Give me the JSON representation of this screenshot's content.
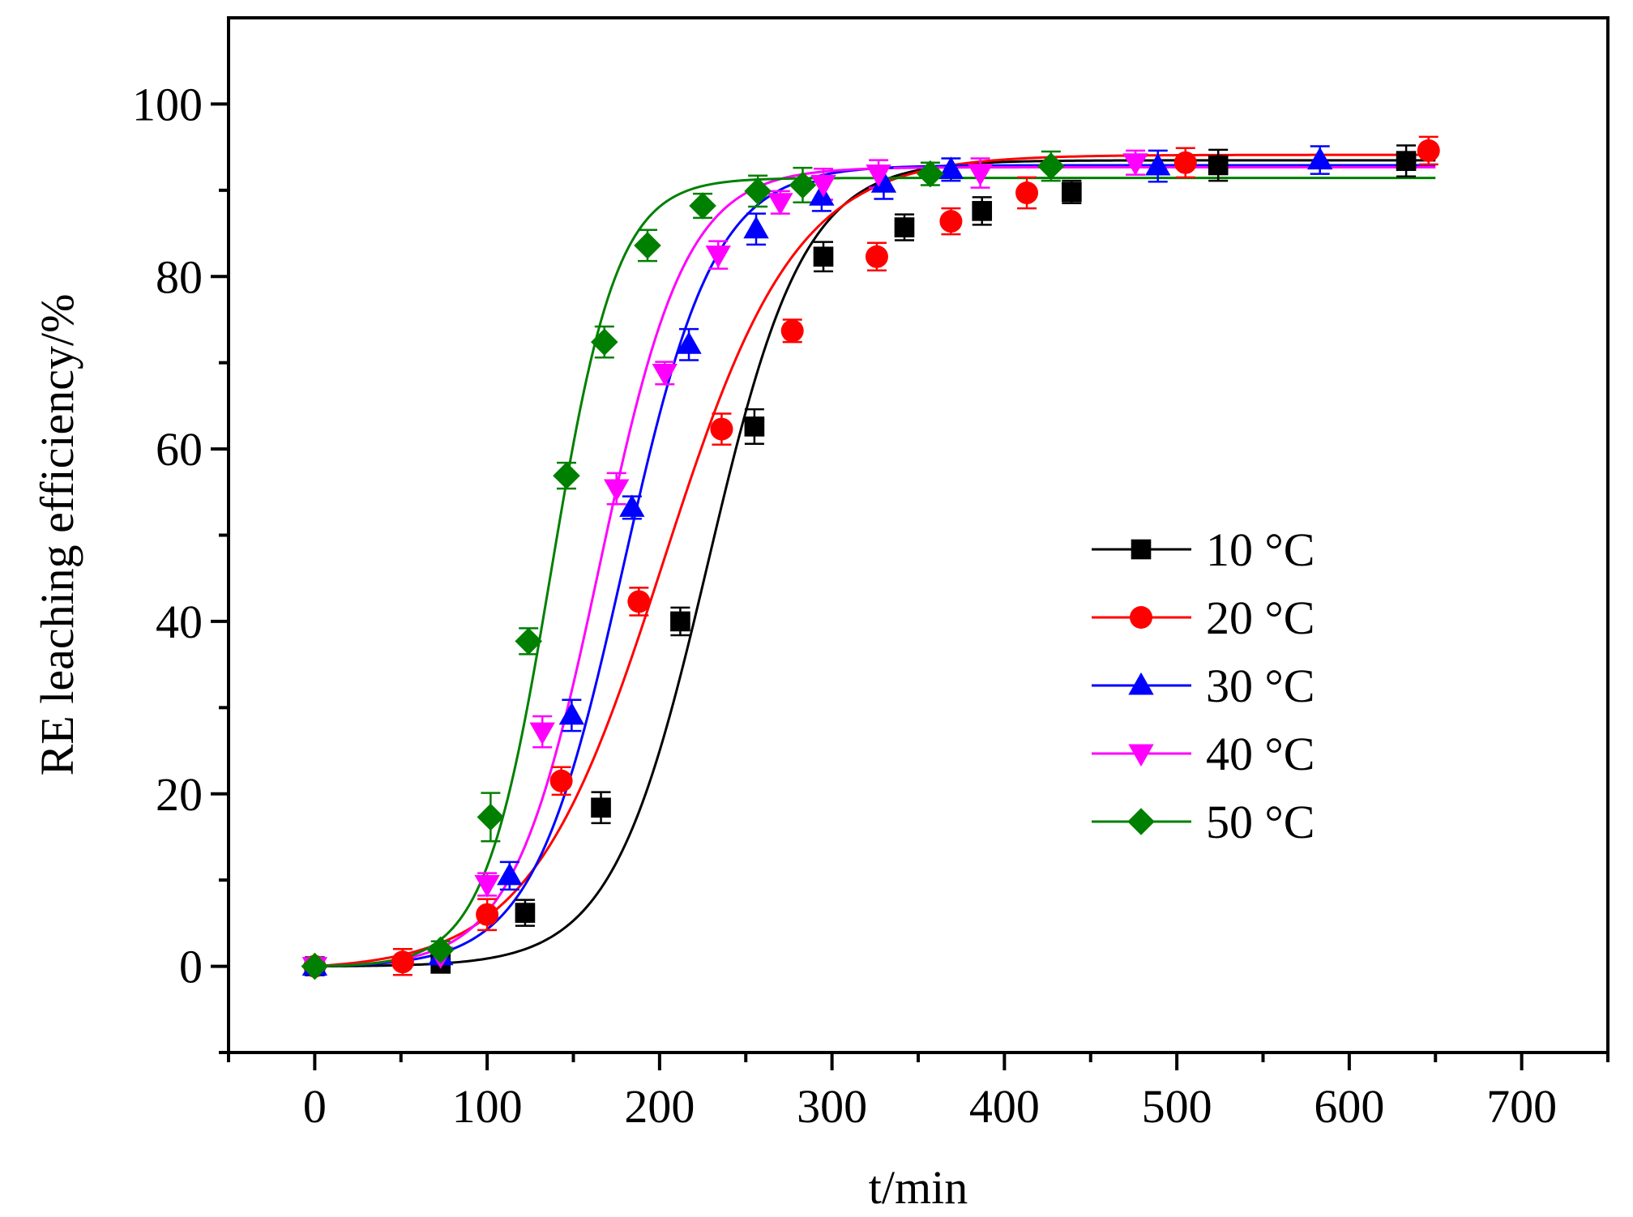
{
  "chart_data": {
    "type": "scatter",
    "title": "",
    "xlabel": "t/min",
    "ylabel": "RE leaching efficiency/%",
    "xlim": [
      -50,
      750
    ],
    "ylim": [
      -10,
      110
    ],
    "xticks": [
      0,
      100,
      200,
      300,
      400,
      500,
      600,
      700
    ],
    "yticks": [
      0,
      20,
      40,
      60,
      80,
      100
    ],
    "xtick_labels": [
      "0",
      "100",
      "200",
      "300",
      "400",
      "500",
      "600",
      "700"
    ],
    "ytick_labels": [
      "0",
      "20",
      "40",
      "60",
      "80",
      "100"
    ],
    "legend_position": "center-right",
    "grid": false,
    "series": [
      {
        "name": "10 °C",
        "marker": "square",
        "color": "#000000",
        "x": [
          0,
          73,
          122,
          166,
          212,
          255,
          295,
          342,
          387,
          439,
          524,
          633
        ],
        "y": [
          0,
          0.3,
          6.2,
          18.4,
          40,
          62.6,
          82.3,
          85.7,
          87.6,
          89.8,
          92.9,
          93.4
        ],
        "err": [
          0.5,
          0.5,
          1.5,
          1.8,
          1.6,
          2.0,
          1.7,
          1.5,
          1.6,
          1.3,
          1.8,
          1.8
        ],
        "fit": {
          "a": 93.5,
          "x0": 228,
          "k": 0.036
        }
      },
      {
        "name": "20 °C",
        "marker": "circle",
        "color": "#ff0000",
        "x": [
          0,
          51,
          100,
          143,
          188,
          236,
          277,
          326,
          369,
          413,
          505,
          646
        ],
        "y": [
          0,
          0.5,
          6,
          21.5,
          42.3,
          62.3,
          73.7,
          82.3,
          86.4,
          89.7,
          93.2,
          94.6
        ],
        "err": [
          0.5,
          1.5,
          1.8,
          1.6,
          1.6,
          1.8,
          1.3,
          1.6,
          1.5,
          1.8,
          1.7,
          1.6
        ],
        "fit": {
          "a": 94.6,
          "x0": 202,
          "k": 0.026
        }
      },
      {
        "name": "30 °C",
        "marker": "triangle-up",
        "color": "#0000ff",
        "x": [
          0,
          73,
          113,
          149,
          184,
          217,
          256,
          294,
          330,
          369,
          489,
          583
        ],
        "y": [
          0,
          1.2,
          10.5,
          29.1,
          53.2,
          72.1,
          85.5,
          89.3,
          90.8,
          92.4,
          92.8,
          93.5
        ],
        "err": [
          0.5,
          0.8,
          1.6,
          1.8,
          1.3,
          1.8,
          1.8,
          1.7,
          1.8,
          1.3,
          1.8,
          1.6
        ],
        "fit": {
          "a": 93.0,
          "x0": 179,
          "k": 0.038
        }
      },
      {
        "name": "40 °C",
        "marker": "triangle-down",
        "color": "#ff00ff",
        "x": [
          0,
          73,
          100,
          132,
          175,
          203,
          234,
          270,
          295,
          327,
          386,
          476
        ],
        "y": [
          0,
          1.2,
          9.5,
          27.2,
          55.4,
          68.8,
          82.5,
          88.6,
          90.7,
          91.9,
          92.0,
          93.2
        ],
        "err": [
          0.5,
          0.8,
          1.3,
          1.8,
          1.8,
          1.3,
          1.6,
          1.3,
          1.8,
          1.6,
          1.7,
          1.4
        ],
        "fit": {
          "a": 92.8,
          "x0": 165,
          "k": 0.04
        }
      },
      {
        "name": "50 °C",
        "marker": "diamond",
        "color": "#008000",
        "x": [
          0,
          73,
          102,
          124,
          146,
          168,
          193,
          225,
          257,
          283,
          357,
          427
        ],
        "y": [
          0,
          1.9,
          17.3,
          37.7,
          56.9,
          72.4,
          83.6,
          88.2,
          89.9,
          90.6,
          91.9,
          92.8
        ],
        "err": [
          0.5,
          1.0,
          2.8,
          1.5,
          1.5,
          1.8,
          1.8,
          1.4,
          1.8,
          2.0,
          1.3,
          1.7
        ],
        "fit": {
          "a": 91.5,
          "x0": 137,
          "k": 0.052
        }
      }
    ]
  }
}
